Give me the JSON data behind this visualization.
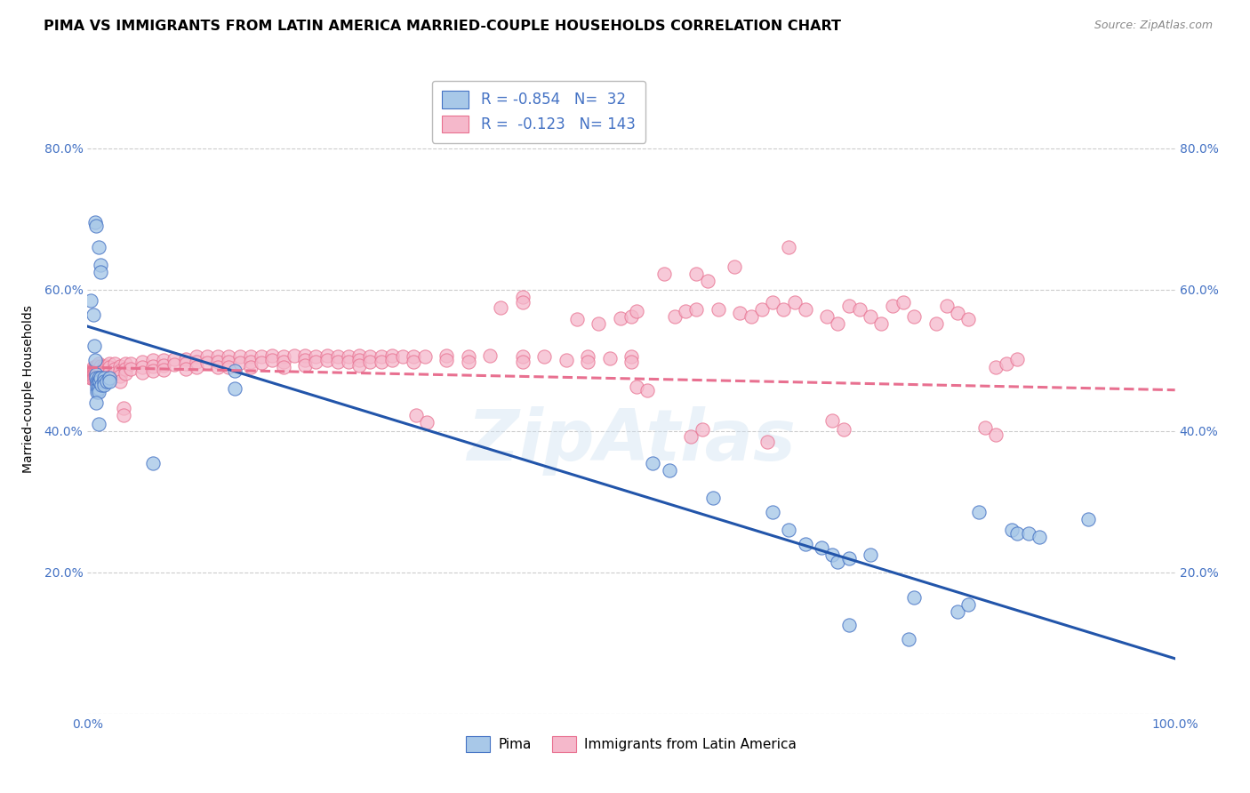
{
  "title": "PIMA VS IMMIGRANTS FROM LATIN AMERICA MARRIED-COUPLE HOUSEHOLDS CORRELATION CHART",
  "source": "Source: ZipAtlas.com",
  "ylabel": "Married-couple Households",
  "xlim": [
    0,
    1.0
  ],
  "ylim": [
    0,
    0.92
  ],
  "xticks": [
    0.0,
    0.1,
    0.2,
    0.3,
    0.4,
    0.5,
    0.6,
    0.7,
    0.8,
    0.9,
    1.0
  ],
  "yticks": [
    0.0,
    0.2,
    0.4,
    0.6,
    0.8
  ],
  "ytick_labels_left": [
    "",
    "20.0%",
    "40.0%",
    "60.0%",
    "80.0%"
  ],
  "ytick_labels_right": [
    "",
    "20.0%",
    "40.0%",
    "60.0%",
    "80.0%"
  ],
  "xtick_labels": [
    "0.0%",
    "",
    "",
    "",
    "",
    "",
    "",
    "",
    "",
    "",
    "100.0%"
  ],
  "pima_color": "#a8c8e8",
  "latin_color": "#f5b8cb",
  "pima_edge_color": "#4472c4",
  "latin_edge_color": "#e87090",
  "pima_line_color": "#2255aa",
  "latin_line_color": "#e87090",
  "watermark": "ZipAtlas",
  "pima_points": [
    [
      0.003,
      0.585
    ],
    [
      0.005,
      0.565
    ],
    [
      0.007,
      0.695
    ],
    [
      0.008,
      0.69
    ],
    [
      0.01,
      0.66
    ],
    [
      0.012,
      0.635
    ],
    [
      0.012,
      0.625
    ],
    [
      0.006,
      0.52
    ],
    [
      0.007,
      0.5
    ],
    [
      0.008,
      0.48
    ],
    [
      0.008,
      0.475
    ],
    [
      0.009,
      0.47
    ],
    [
      0.009,
      0.465
    ],
    [
      0.009,
      0.46
    ],
    [
      0.009,
      0.455
    ],
    [
      0.01,
      0.475
    ],
    [
      0.01,
      0.47
    ],
    [
      0.01,
      0.46
    ],
    [
      0.01,
      0.455
    ],
    [
      0.011,
      0.47
    ],
    [
      0.012,
      0.475
    ],
    [
      0.013,
      0.465
    ],
    [
      0.015,
      0.475
    ],
    [
      0.015,
      0.47
    ],
    [
      0.015,
      0.465
    ],
    [
      0.018,
      0.47
    ],
    [
      0.02,
      0.475
    ],
    [
      0.02,
      0.47
    ],
    [
      0.008,
      0.44
    ],
    [
      0.01,
      0.41
    ],
    [
      0.06,
      0.355
    ],
    [
      0.135,
      0.485
    ],
    [
      0.135,
      0.46
    ],
    [
      0.52,
      0.355
    ],
    [
      0.535,
      0.345
    ],
    [
      0.575,
      0.305
    ],
    [
      0.63,
      0.285
    ],
    [
      0.645,
      0.26
    ],
    [
      0.66,
      0.24
    ],
    [
      0.675,
      0.235
    ],
    [
      0.685,
      0.225
    ],
    [
      0.69,
      0.215
    ],
    [
      0.7,
      0.22
    ],
    [
      0.72,
      0.225
    ],
    [
      0.76,
      0.165
    ],
    [
      0.82,
      0.285
    ],
    [
      0.85,
      0.26
    ],
    [
      0.855,
      0.255
    ],
    [
      0.865,
      0.255
    ],
    [
      0.875,
      0.25
    ],
    [
      0.7,
      0.125
    ],
    [
      0.755,
      0.105
    ],
    [
      0.8,
      0.145
    ],
    [
      0.81,
      0.155
    ],
    [
      0.92,
      0.275
    ]
  ],
  "latin_points": [
    [
      0.003,
      0.48
    ],
    [
      0.003,
      0.475
    ],
    [
      0.004,
      0.485
    ],
    [
      0.004,
      0.48
    ],
    [
      0.004,
      0.475
    ],
    [
      0.005,
      0.49
    ],
    [
      0.005,
      0.485
    ],
    [
      0.005,
      0.48
    ],
    [
      0.005,
      0.475
    ],
    [
      0.006,
      0.488
    ],
    [
      0.006,
      0.482
    ],
    [
      0.006,
      0.476
    ],
    [
      0.007,
      0.49
    ],
    [
      0.007,
      0.485
    ],
    [
      0.007,
      0.478
    ],
    [
      0.008,
      0.492
    ],
    [
      0.008,
      0.486
    ],
    [
      0.008,
      0.478
    ],
    [
      0.009,
      0.492
    ],
    [
      0.009,
      0.485
    ],
    [
      0.01,
      0.495
    ],
    [
      0.01,
      0.488
    ],
    [
      0.01,
      0.48
    ],
    [
      0.012,
      0.492
    ],
    [
      0.012,
      0.484
    ],
    [
      0.015,
      0.492
    ],
    [
      0.015,
      0.485
    ],
    [
      0.015,
      0.478
    ],
    [
      0.018,
      0.492
    ],
    [
      0.018,
      0.485
    ],
    [
      0.02,
      0.495
    ],
    [
      0.02,
      0.49
    ],
    [
      0.02,
      0.483
    ],
    [
      0.02,
      0.476
    ],
    [
      0.025,
      0.495
    ],
    [
      0.025,
      0.488
    ],
    [
      0.025,
      0.481
    ],
    [
      0.03,
      0.492
    ],
    [
      0.03,
      0.485
    ],
    [
      0.03,
      0.478
    ],
    [
      0.03,
      0.47
    ],
    [
      0.035,
      0.495
    ],
    [
      0.035,
      0.488
    ],
    [
      0.035,
      0.481
    ],
    [
      0.04,
      0.495
    ],
    [
      0.04,
      0.488
    ],
    [
      0.05,
      0.498
    ],
    [
      0.05,
      0.49
    ],
    [
      0.05,
      0.483
    ],
    [
      0.06,
      0.5
    ],
    [
      0.06,
      0.492
    ],
    [
      0.06,
      0.485
    ],
    [
      0.07,
      0.5
    ],
    [
      0.07,
      0.493
    ],
    [
      0.07,
      0.486
    ],
    [
      0.08,
      0.502
    ],
    [
      0.08,
      0.494
    ],
    [
      0.09,
      0.502
    ],
    [
      0.09,
      0.495
    ],
    [
      0.09,
      0.488
    ],
    [
      0.1,
      0.505
    ],
    [
      0.1,
      0.498
    ],
    [
      0.1,
      0.49
    ],
    [
      0.11,
      0.505
    ],
    [
      0.11,
      0.497
    ],
    [
      0.12,
      0.505
    ],
    [
      0.12,
      0.498
    ],
    [
      0.12,
      0.49
    ],
    [
      0.13,
      0.505
    ],
    [
      0.13,
      0.498
    ],
    [
      0.13,
      0.49
    ],
    [
      0.14,
      0.505
    ],
    [
      0.14,
      0.497
    ],
    [
      0.15,
      0.505
    ],
    [
      0.15,
      0.498
    ],
    [
      0.15,
      0.49
    ],
    [
      0.16,
      0.505
    ],
    [
      0.16,
      0.497
    ],
    [
      0.17,
      0.507
    ],
    [
      0.17,
      0.5
    ],
    [
      0.18,
      0.505
    ],
    [
      0.18,
      0.498
    ],
    [
      0.18,
      0.49
    ],
    [
      0.19,
      0.507
    ],
    [
      0.2,
      0.507
    ],
    [
      0.2,
      0.5
    ],
    [
      0.2,
      0.493
    ],
    [
      0.21,
      0.505
    ],
    [
      0.21,
      0.498
    ],
    [
      0.22,
      0.507
    ],
    [
      0.22,
      0.5
    ],
    [
      0.23,
      0.505
    ],
    [
      0.23,
      0.498
    ],
    [
      0.24,
      0.505
    ],
    [
      0.24,
      0.498
    ],
    [
      0.25,
      0.507
    ],
    [
      0.25,
      0.5
    ],
    [
      0.25,
      0.493
    ],
    [
      0.26,
      0.505
    ],
    [
      0.26,
      0.498
    ],
    [
      0.27,
      0.505
    ],
    [
      0.27,
      0.498
    ],
    [
      0.28,
      0.507
    ],
    [
      0.28,
      0.5
    ],
    [
      0.29,
      0.505
    ],
    [
      0.3,
      0.505
    ],
    [
      0.3,
      0.498
    ],
    [
      0.31,
      0.505
    ],
    [
      0.33,
      0.507
    ],
    [
      0.33,
      0.5
    ],
    [
      0.35,
      0.505
    ],
    [
      0.35,
      0.498
    ],
    [
      0.37,
      0.507
    ],
    [
      0.4,
      0.505
    ],
    [
      0.4,
      0.498
    ],
    [
      0.42,
      0.505
    ],
    [
      0.44,
      0.5
    ],
    [
      0.46,
      0.505
    ],
    [
      0.46,
      0.498
    ],
    [
      0.48,
      0.503
    ],
    [
      0.5,
      0.505
    ],
    [
      0.5,
      0.498
    ],
    [
      0.38,
      0.575
    ],
    [
      0.4,
      0.59
    ],
    [
      0.4,
      0.582
    ],
    [
      0.45,
      0.558
    ],
    [
      0.47,
      0.552
    ],
    [
      0.49,
      0.56
    ],
    [
      0.5,
      0.562
    ],
    [
      0.505,
      0.57
    ],
    [
      0.54,
      0.562
    ],
    [
      0.55,
      0.57
    ],
    [
      0.56,
      0.572
    ],
    [
      0.58,
      0.572
    ],
    [
      0.6,
      0.567
    ],
    [
      0.61,
      0.562
    ],
    [
      0.62,
      0.572
    ],
    [
      0.63,
      0.582
    ],
    [
      0.64,
      0.572
    ],
    [
      0.65,
      0.582
    ],
    [
      0.66,
      0.572
    ],
    [
      0.53,
      0.622
    ],
    [
      0.56,
      0.622
    ],
    [
      0.57,
      0.612
    ],
    [
      0.595,
      0.632
    ],
    [
      0.645,
      0.66
    ],
    [
      0.68,
      0.562
    ],
    [
      0.69,
      0.552
    ],
    [
      0.7,
      0.577
    ],
    [
      0.71,
      0.572
    ],
    [
      0.72,
      0.562
    ],
    [
      0.73,
      0.552
    ],
    [
      0.74,
      0.577
    ],
    [
      0.75,
      0.582
    ],
    [
      0.76,
      0.562
    ],
    [
      0.78,
      0.552
    ],
    [
      0.79,
      0.577
    ],
    [
      0.8,
      0.567
    ],
    [
      0.81,
      0.558
    ],
    [
      0.835,
      0.49
    ],
    [
      0.845,
      0.495
    ],
    [
      0.855,
      0.502
    ],
    [
      0.825,
      0.405
    ],
    [
      0.835,
      0.395
    ],
    [
      0.625,
      0.385
    ],
    [
      0.685,
      0.415
    ],
    [
      0.695,
      0.402
    ],
    [
      0.555,
      0.392
    ],
    [
      0.565,
      0.402
    ],
    [
      0.033,
      0.432
    ],
    [
      0.033,
      0.422
    ],
    [
      0.302,
      0.422
    ],
    [
      0.312,
      0.412
    ],
    [
      0.505,
      0.462
    ],
    [
      0.515,
      0.457
    ]
  ],
  "pima_line": {
    "x0": 0.0,
    "y0": 0.548,
    "x1": 1.0,
    "y1": 0.078
  },
  "latin_line": {
    "x0": 0.0,
    "y0": 0.49,
    "x1": 1.0,
    "y1": 0.458
  },
  "bg_color": "#ffffff",
  "grid_color": "#cccccc",
  "title_fontsize": 11.5,
  "axis_label_fontsize": 10,
  "tick_fontsize": 10,
  "tick_color": "#4472c4",
  "legend_r_color": "#4472c4",
  "legend_n_color": "#4472c4",
  "legend_fontsize": 12
}
